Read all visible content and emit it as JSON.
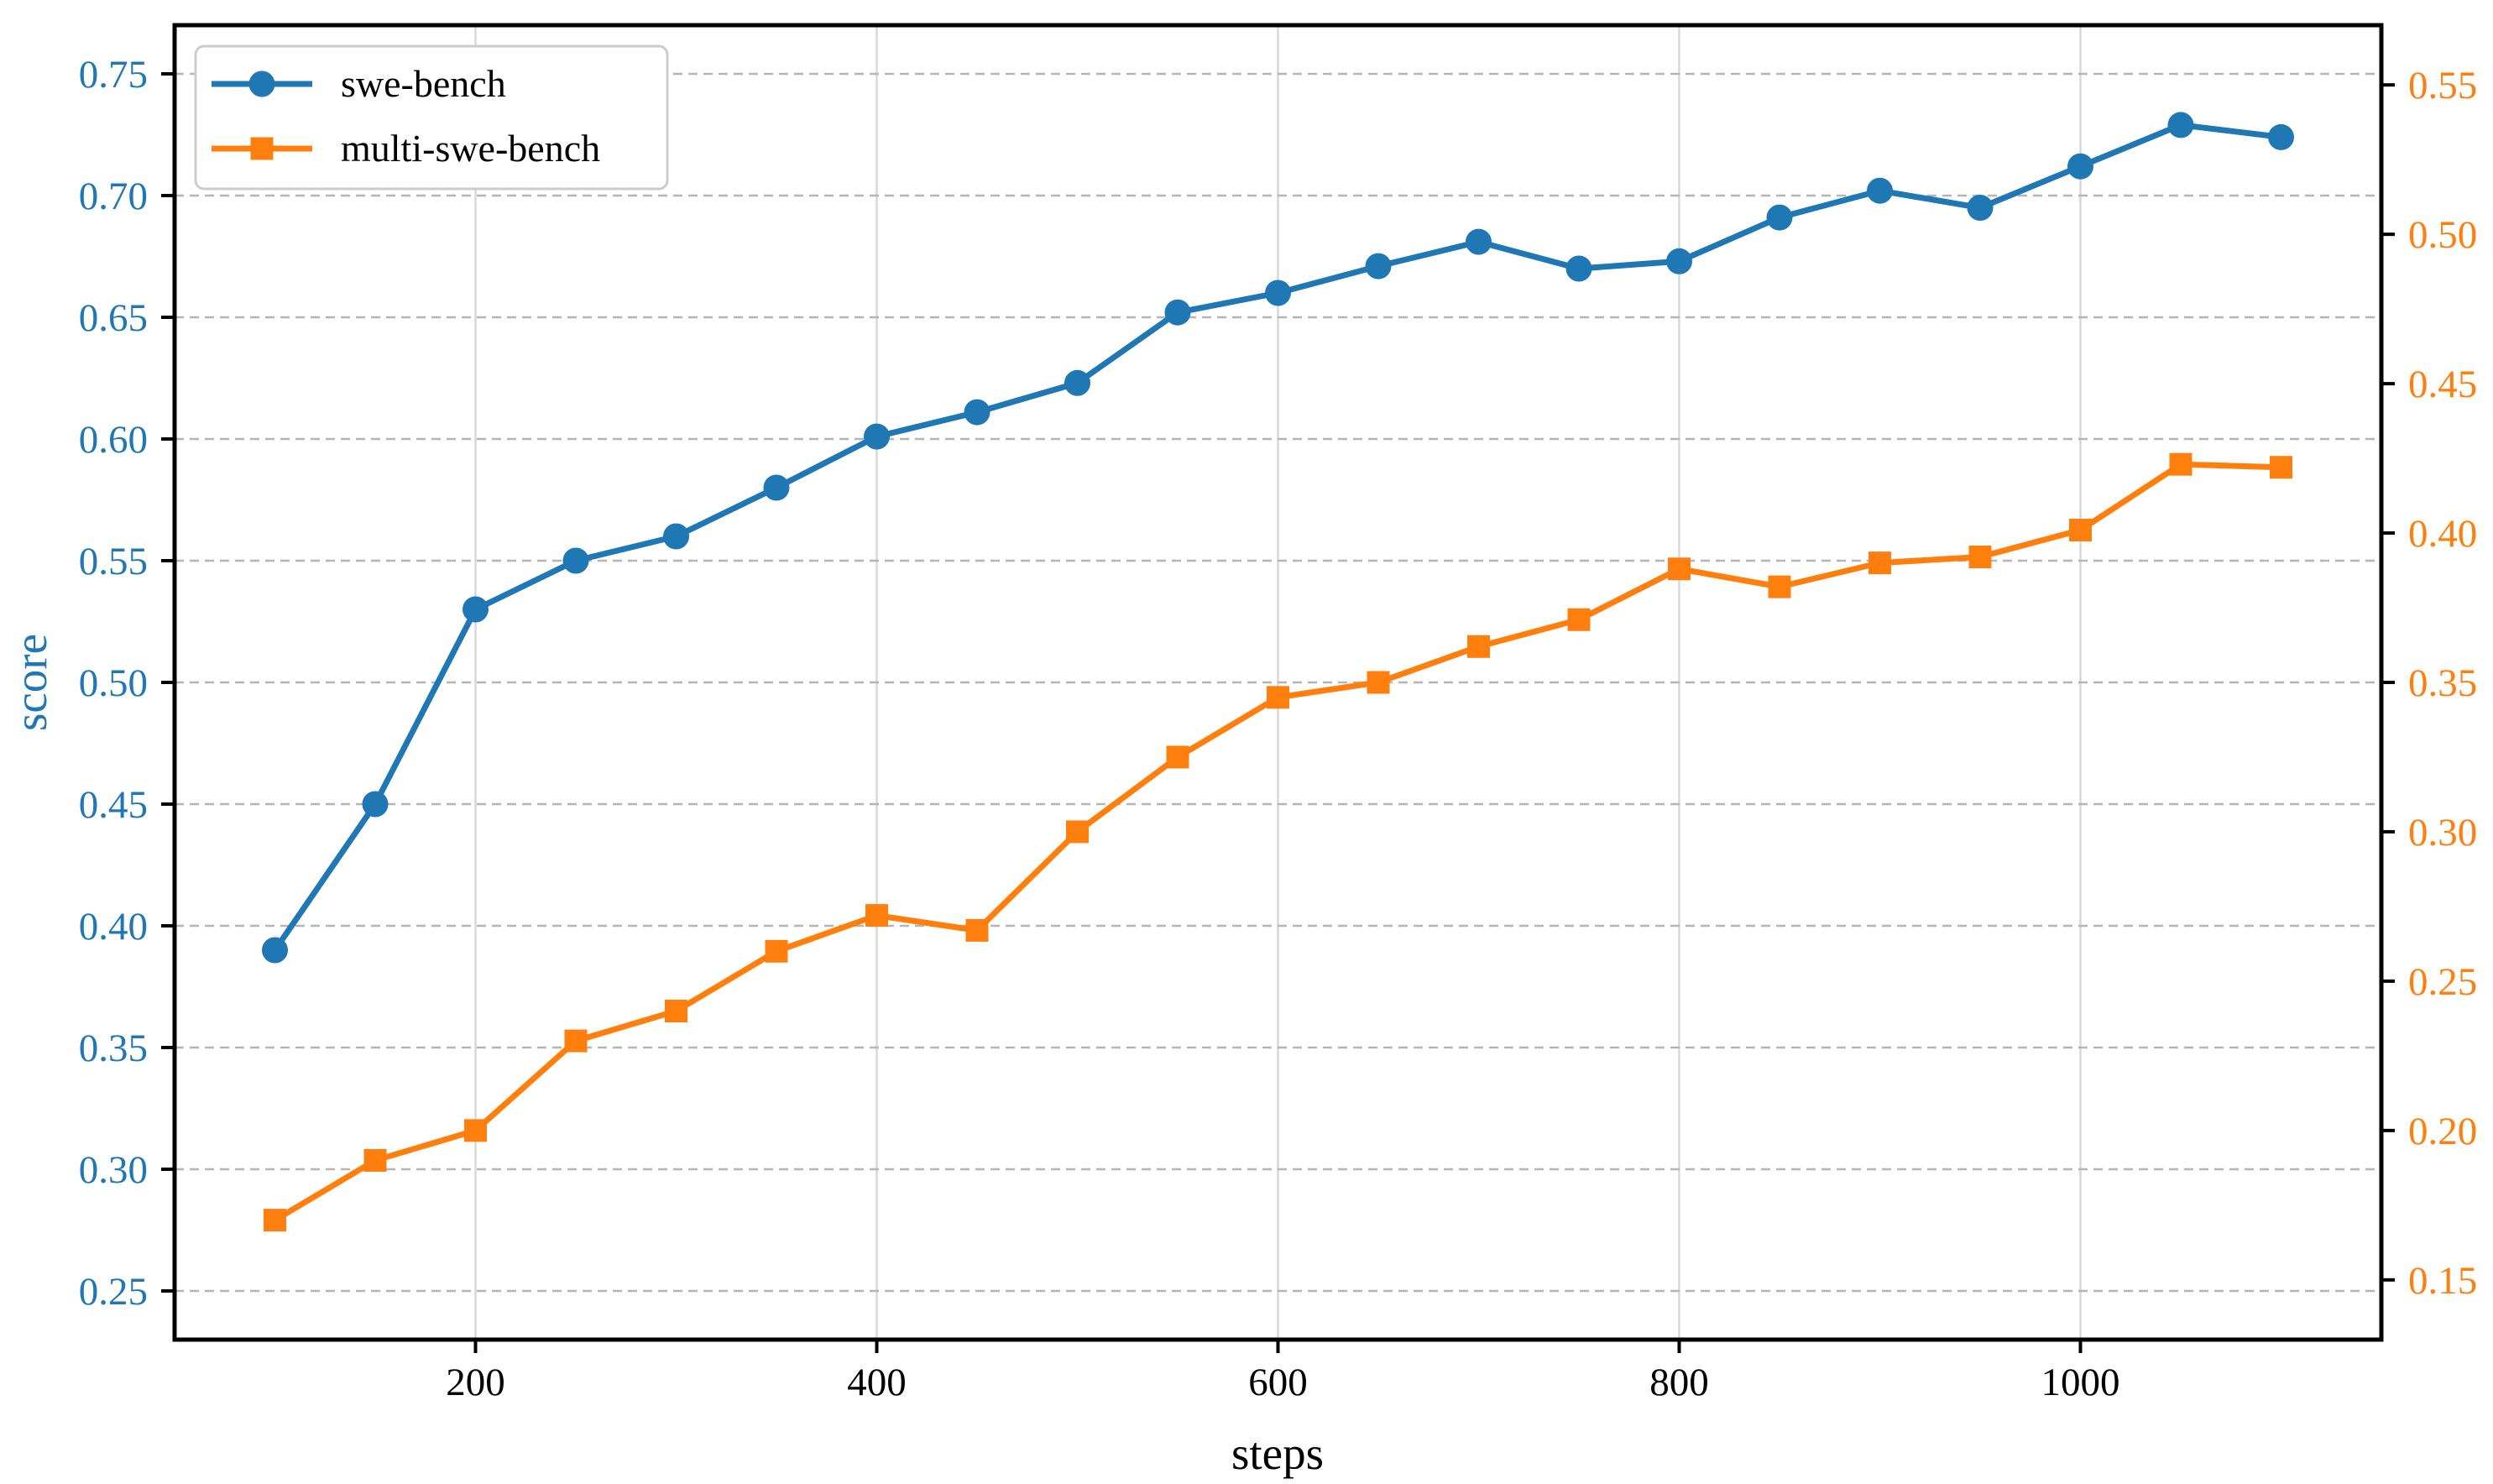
{
  "chart_data": {
    "type": "line",
    "title": "",
    "xlabel": "steps",
    "ylabel_left": "score",
    "x": [
      100,
      150,
      200,
      250,
      300,
      350,
      400,
      450,
      500,
      550,
      600,
      650,
      700,
      750,
      800,
      850,
      900,
      950,
      1000,
      1050,
      1100
    ],
    "series": [
      {
        "name": "swe-bench",
        "axis": "left",
        "color": "#1f77b4",
        "marker": "circle",
        "values": [
          0.39,
          0.45,
          0.53,
          0.55,
          0.56,
          0.58,
          0.601,
          0.611,
          0.623,
          0.652,
          0.66,
          0.671,
          0.681,
          0.67,
          0.673,
          0.691,
          0.702,
          0.695,
          0.712,
          0.729,
          0.724
        ]
      },
      {
        "name": "multi-swe-bench",
        "axis": "right",
        "color": "#ff7f0e",
        "marker": "square",
        "values": [
          0.17,
          0.19,
          0.2,
          0.23,
          0.24,
          0.26,
          0.272,
          0.267,
          0.3,
          0.325,
          0.345,
          0.35,
          0.362,
          0.371,
          0.388,
          0.382,
          0.39,
          0.392,
          0.401,
          0.423,
          0.422
        ]
      }
    ],
    "xlim": [
      50,
      1150
    ],
    "ylim_left": [
      0.23,
      0.77
    ],
    "ylim_right": [
      0.13,
      0.57
    ],
    "xticks": [
      200,
      400,
      600,
      800,
      1000
    ],
    "yticks_left": [
      0.25,
      0.3,
      0.35,
      0.4,
      0.45,
      0.5,
      0.55,
      0.6,
      0.65,
      0.7,
      0.75
    ],
    "yticks_right": [
      0.15,
      0.2,
      0.25,
      0.3,
      0.35,
      0.4,
      0.45,
      0.5,
      0.55
    ],
    "legend": {
      "position": "upper-left",
      "entries": [
        "swe-bench",
        "multi-swe-bench"
      ]
    },
    "grid": {
      "horizontal": "dashed",
      "vertical": "solid"
    }
  },
  "style_colors": {
    "axis_left_text": "#1f77b4",
    "axis_right_text": "#ff7f0e",
    "axis_bottom_text": "#000000",
    "spine": "#000000",
    "grid_horizontal": "#b5b5b5",
    "grid_vertical": "#d8d8d8",
    "legend_border": "#cccccc",
    "legend_background": "#ffffff"
  }
}
